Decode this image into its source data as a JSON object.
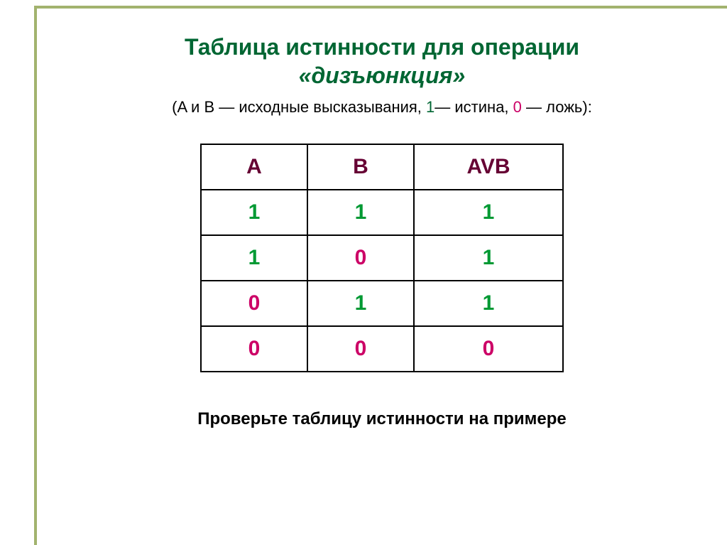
{
  "title_line1": "Таблица истинности для операции",
  "title_line2": "«дизъюнкция»",
  "subtitle_prefix": "(A и B — исходные высказывания, ",
  "subtitle_one": "1",
  "subtitle_true": "— истина, ",
  "subtitle_zero": "0",
  "subtitle_false": " — ложь):",
  "table": {
    "headers": [
      "A",
      "B",
      "AVB"
    ],
    "rows": [
      [
        "1",
        "1",
        "1"
      ],
      [
        "1",
        "0",
        "1"
      ],
      [
        "0",
        "1",
        "1"
      ],
      [
        "0",
        "0",
        "0"
      ]
    ],
    "col_widths": [
      "col-a",
      "col-b",
      "col-c"
    ],
    "colors": {
      "1": "v1",
      "0": "v0"
    },
    "header_color": "#660033",
    "border_color": "#000000",
    "cell_fontsize": 30
  },
  "footer": "Проверьте таблицу истинности на примере",
  "frame_color": "#a2b36e",
  "title_color": "#006633"
}
